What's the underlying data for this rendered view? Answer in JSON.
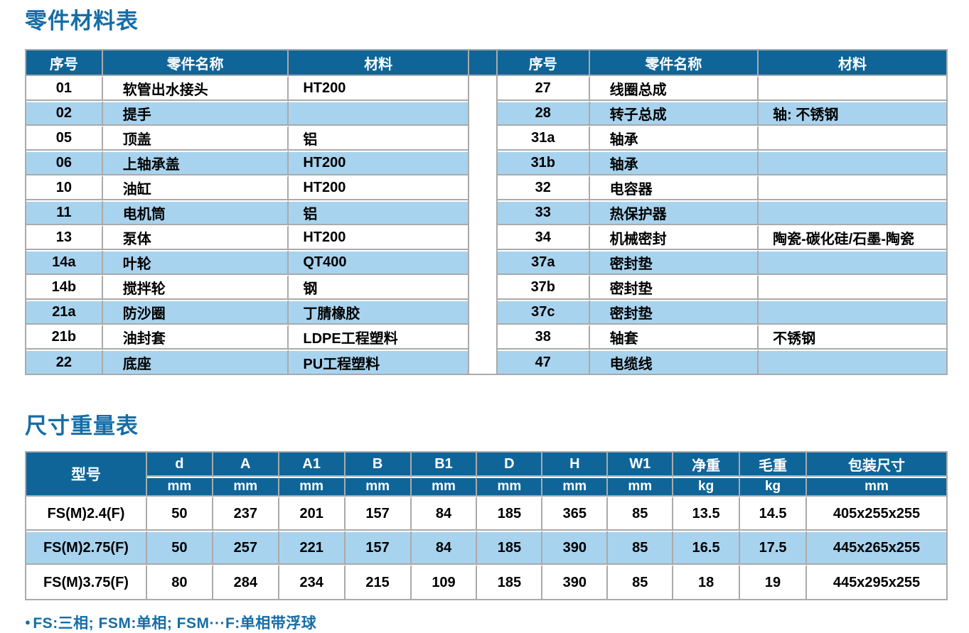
{
  "theme": {
    "header_blue": "#0f6598",
    "title_blue": "#156da6",
    "zebra_blue": "#a8d3ee",
    "grid_grey": "#aaaaaa"
  },
  "parts_section": {
    "title": "零件材料表",
    "columns": [
      "序号",
      "零件名称",
      "材料"
    ],
    "left_rows": [
      [
        "01",
        "软管出水接头",
        "HT200"
      ],
      [
        "02",
        "提手",
        ""
      ],
      [
        "05",
        "顶盖",
        "铝"
      ],
      [
        "06",
        "上轴承盖",
        "HT200"
      ],
      [
        "10",
        "油缸",
        "HT200"
      ],
      [
        "11",
        "电机筒",
        "铝"
      ],
      [
        "13",
        "泵体",
        "HT200"
      ],
      [
        "14a",
        "叶轮",
        "QT400"
      ],
      [
        "14b",
        "搅拌轮",
        "钢"
      ],
      [
        "21a",
        "防沙圈",
        "丁腈橡胶"
      ],
      [
        "21b",
        "油封套",
        "LDPE工程塑料"
      ],
      [
        "22",
        "底座",
        "PU工程塑料"
      ]
    ],
    "right_rows": [
      [
        "27",
        "线圈总成",
        ""
      ],
      [
        "28",
        "转子总成",
        "轴: 不锈钢"
      ],
      [
        "31a",
        "轴承",
        ""
      ],
      [
        "31b",
        "轴承",
        ""
      ],
      [
        "32",
        "电容器",
        ""
      ],
      [
        "33",
        "热保护器",
        ""
      ],
      [
        "34",
        "机械密封",
        "陶瓷-碳化硅/石墨-陶瓷"
      ],
      [
        "37a",
        "密封垫",
        ""
      ],
      [
        "37b",
        "密封垫",
        ""
      ],
      [
        "37c",
        "密封垫",
        ""
      ],
      [
        "38",
        "轴套",
        "不锈钢"
      ],
      [
        "47",
        "电缆线",
        ""
      ]
    ]
  },
  "dimensions_section": {
    "title": "尺寸重量表",
    "model_header": "型号",
    "columns": [
      {
        "label": "d",
        "unit": "mm"
      },
      {
        "label": "A",
        "unit": "mm"
      },
      {
        "label": "A1",
        "unit": "mm"
      },
      {
        "label": "B",
        "unit": "mm"
      },
      {
        "label": "B1",
        "unit": "mm"
      },
      {
        "label": "D",
        "unit": "mm"
      },
      {
        "label": "H",
        "unit": "mm"
      },
      {
        "label": "W1",
        "unit": "mm"
      },
      {
        "label": "净重",
        "unit": "kg"
      },
      {
        "label": "毛重",
        "unit": "kg"
      },
      {
        "label": "包装尺寸",
        "unit": "mm"
      }
    ],
    "rows": [
      [
        "FS(M)2.4(F)",
        "50",
        "237",
        "201",
        "157",
        "84",
        "185",
        "365",
        "85",
        "13.5",
        "14.5",
        "405x255x255"
      ],
      [
        "FS(M)2.75(F)",
        "50",
        "257",
        "221",
        "157",
        "84",
        "185",
        "390",
        "85",
        "16.5",
        "17.5",
        "445x265x255"
      ],
      [
        "FS(M)3.75(F)",
        "80",
        "284",
        "234",
        "215",
        "109",
        "185",
        "390",
        "85",
        "18",
        "19",
        "445x295x255"
      ]
    ]
  },
  "footnote": {
    "bullet": "●",
    "text": "FS:三相; FSM:单相; FSM···F:单相带浮球"
  }
}
